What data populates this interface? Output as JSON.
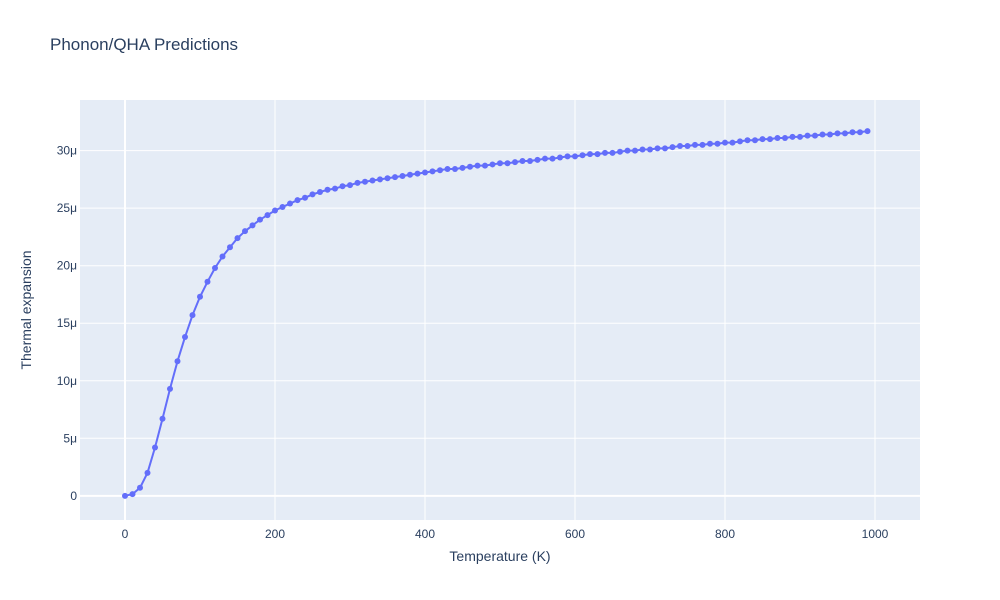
{
  "chart_data": {
    "type": "line",
    "title": "Phonon/QHA Predictions",
    "xlabel": "Temperature (K)",
    "ylabel": "Thermal expansion",
    "xlim": [
      -60,
      1060
    ],
    "ylim": [
      -2.1e-06,
      3.44e-05
    ],
    "x_ticks": [
      0,
      200,
      400,
      600,
      800,
      1000
    ],
    "x_tick_labels": [
      "0",
      "200",
      "400",
      "600",
      "800",
      "1000"
    ],
    "y_ticks": [
      0,
      5e-06,
      1e-05,
      1.5e-05,
      2e-05,
      2.5e-05,
      3e-05
    ],
    "y_tick_labels": [
      "0",
      "5μ",
      "10μ",
      "15μ",
      "20μ",
      "25μ",
      "30μ"
    ],
    "grid": true,
    "legend": false,
    "colors": {
      "line": "#636efa",
      "plot_bg": "#e5ecf6",
      "grid": "#ffffff",
      "text": "#2a3f5f"
    },
    "series": [
      {
        "mode": "lines+markers",
        "x": [
          0,
          10,
          20,
          30,
          40,
          50,
          60,
          70,
          80,
          90,
          100,
          110,
          120,
          130,
          140,
          150,
          160,
          170,
          180,
          190,
          200,
          210,
          220,
          230,
          240,
          250,
          260,
          270,
          280,
          290,
          300,
          310,
          320,
          330,
          340,
          350,
          360,
          370,
          380,
          390,
          400,
          410,
          420,
          430,
          440,
          450,
          460,
          470,
          480,
          490,
          500,
          510,
          520,
          530,
          540,
          550,
          560,
          570,
          580,
          590,
          600,
          610,
          620,
          630,
          640,
          650,
          660,
          670,
          680,
          690,
          700,
          710,
          720,
          730,
          740,
          750,
          760,
          770,
          780,
          790,
          800,
          810,
          820,
          830,
          840,
          850,
          860,
          870,
          880,
          890,
          900,
          910,
          920,
          930,
          940,
          950,
          960,
          970,
          980,
          990
        ],
        "y": [
          0.0,
          1.5e-07,
          7e-07,
          2e-06,
          4.2e-06,
          6.7e-06,
          9.3e-06,
          1.17e-05,
          1.38e-05,
          1.57e-05,
          1.73e-05,
          1.86e-05,
          1.98e-05,
          2.08e-05,
          2.16e-05,
          2.24e-05,
          2.3e-05,
          2.35e-05,
          2.4e-05,
          2.44e-05,
          2.48e-05,
          2.51e-05,
          2.54e-05,
          2.57e-05,
          2.59e-05,
          2.62e-05,
          2.64e-05,
          2.66e-05,
          2.67e-05,
          2.69e-05,
          2.7e-05,
          2.72e-05,
          2.73e-05,
          2.74e-05,
          2.75e-05,
          2.76e-05,
          2.77e-05,
          2.78e-05,
          2.79e-05,
          2.8e-05,
          2.81e-05,
          2.82e-05,
          2.83e-05,
          2.84e-05,
          2.84e-05,
          2.85e-05,
          2.86e-05,
          2.87e-05,
          2.87e-05,
          2.88e-05,
          2.89e-05,
          2.89e-05,
          2.9e-05,
          2.91e-05,
          2.91e-05,
          2.92e-05,
          2.93e-05,
          2.93e-05,
          2.94e-05,
          2.95e-05,
          2.95e-05,
          2.96e-05,
          2.97e-05,
          2.97e-05,
          2.98e-05,
          2.98e-05,
          2.99e-05,
          3e-05,
          3e-05,
          3.01e-05,
          3.01e-05,
          3.02e-05,
          3.02e-05,
          3.03e-05,
          3.04e-05,
          3.04e-05,
          3.05e-05,
          3.05e-05,
          3.06e-05,
          3.06e-05,
          3.07e-05,
          3.07e-05,
          3.08e-05,
          3.09e-05,
          3.09e-05,
          3.1e-05,
          3.1e-05,
          3.11e-05,
          3.11e-05,
          3.12e-05,
          3.12e-05,
          3.13e-05,
          3.13e-05,
          3.14e-05,
          3.14e-05,
          3.15e-05,
          3.15e-05,
          3.16e-05,
          3.16e-05,
          3.17e-05
        ]
      }
    ]
  }
}
